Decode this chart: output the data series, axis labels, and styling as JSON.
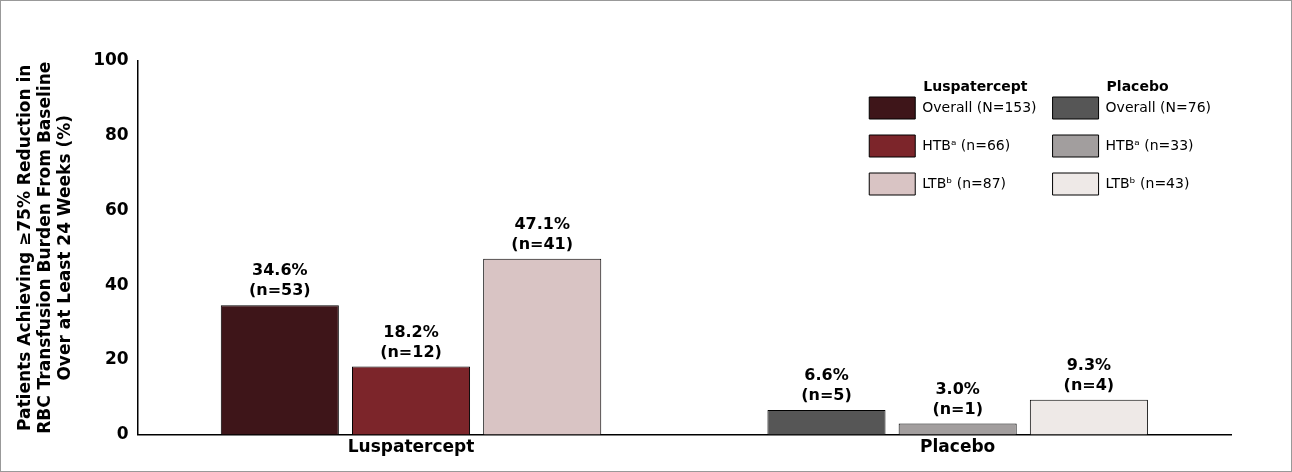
{
  "chart_data": {
    "type": "bar",
    "ylabel": "Patients Achieving ≥75% Reduction in\nRBC Transfusion Burden From Baseline\nOver at Least 24 Weeks (%)",
    "categories": [
      "Luspatercept",
      "Placebo"
    ],
    "series": [
      {
        "name": "Overall (N=153)",
        "color": "#3e1519",
        "values": [
          34.6,
          null
        ],
        "value_labels": [
          "34.6%\n(n=53)",
          null
        ]
      },
      {
        "name": "HTBᵃ (n=66)",
        "color": "#7c252a",
        "values": [
          18.2,
          null
        ],
        "value_labels": [
          "18.2%\n(n=12)",
          null
        ]
      },
      {
        "name": "LTBᵇ (n=87)",
        "color": "#d9c4c4",
        "values": [
          47.1,
          null
        ],
        "value_labels": [
          "47.1%\n(n=41)",
          null
        ]
      },
      {
        "name": "Overall (N=76)",
        "color": "#565656",
        "values": [
          null,
          6.6
        ],
        "value_labels": [
          null,
          "6.6%\n(n=5)"
        ]
      },
      {
        "name": "HTBᵃ (n=33)",
        "color": "#a29e9e",
        "values": [
          null,
          3.0
        ],
        "value_labels": [
          null,
          "3.0%\n(n=1)"
        ]
      },
      {
        "name": "LTBᵇ (n=43)",
        "color": "#eee9e7",
        "values": [
          null,
          9.3
        ],
        "value_labels": [
          null,
          "9.3%\n(n=4)"
        ]
      }
    ],
    "legend_title": [
      "Luspatercept",
      "Placebo"
    ],
    "ylim": [
      0,
      100
    ],
    "yticks": [
      0,
      20,
      40,
      60,
      80,
      100
    ],
    "grid": false,
    "legend": "top right"
  }
}
